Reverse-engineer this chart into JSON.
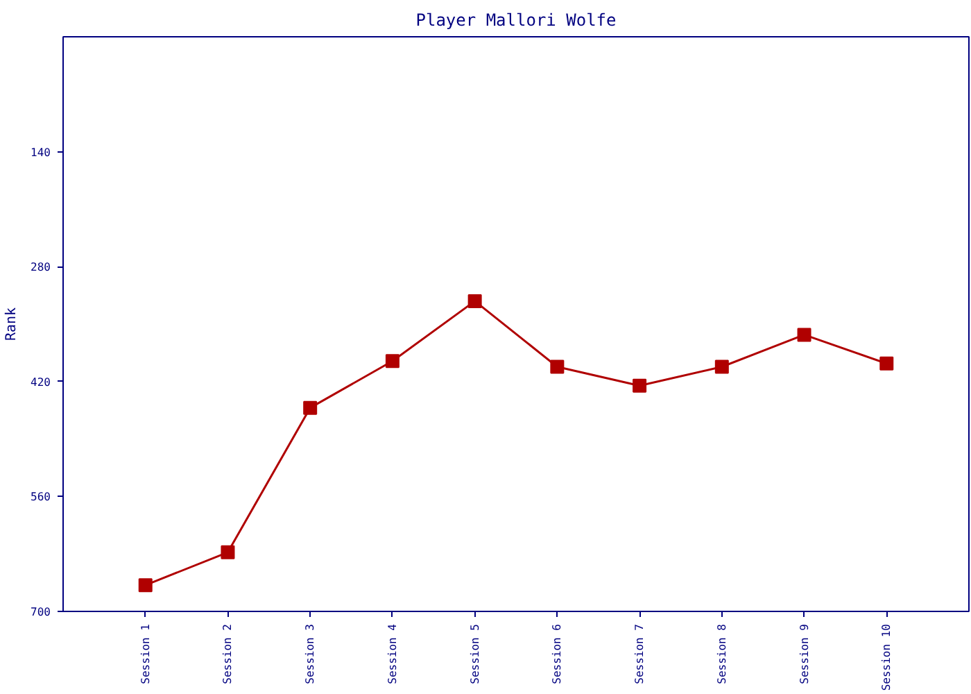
{
  "chart_data": {
    "type": "line",
    "title": "Player Mallori Wolfe",
    "ylabel": "Rank",
    "categories": [
      "Session 1",
      "Session 2",
      "Session 3",
      "Session 4",
      "Session 5",
      "Session 6",
      "Session 7",
      "Session 8",
      "Session 9",
      "Session 10"
    ],
    "series": [
      {
        "color": "#b00000",
        "values": [
          668,
          628,
          452,
          395,
          322,
          402,
          425,
          402,
          363,
          398
        ]
      }
    ],
    "ylim": [
      700,
      0
    ],
    "yticks": [
      140,
      280,
      420,
      560,
      700
    ],
    "grid": false,
    "marker": "square",
    "line_style": "solid"
  }
}
